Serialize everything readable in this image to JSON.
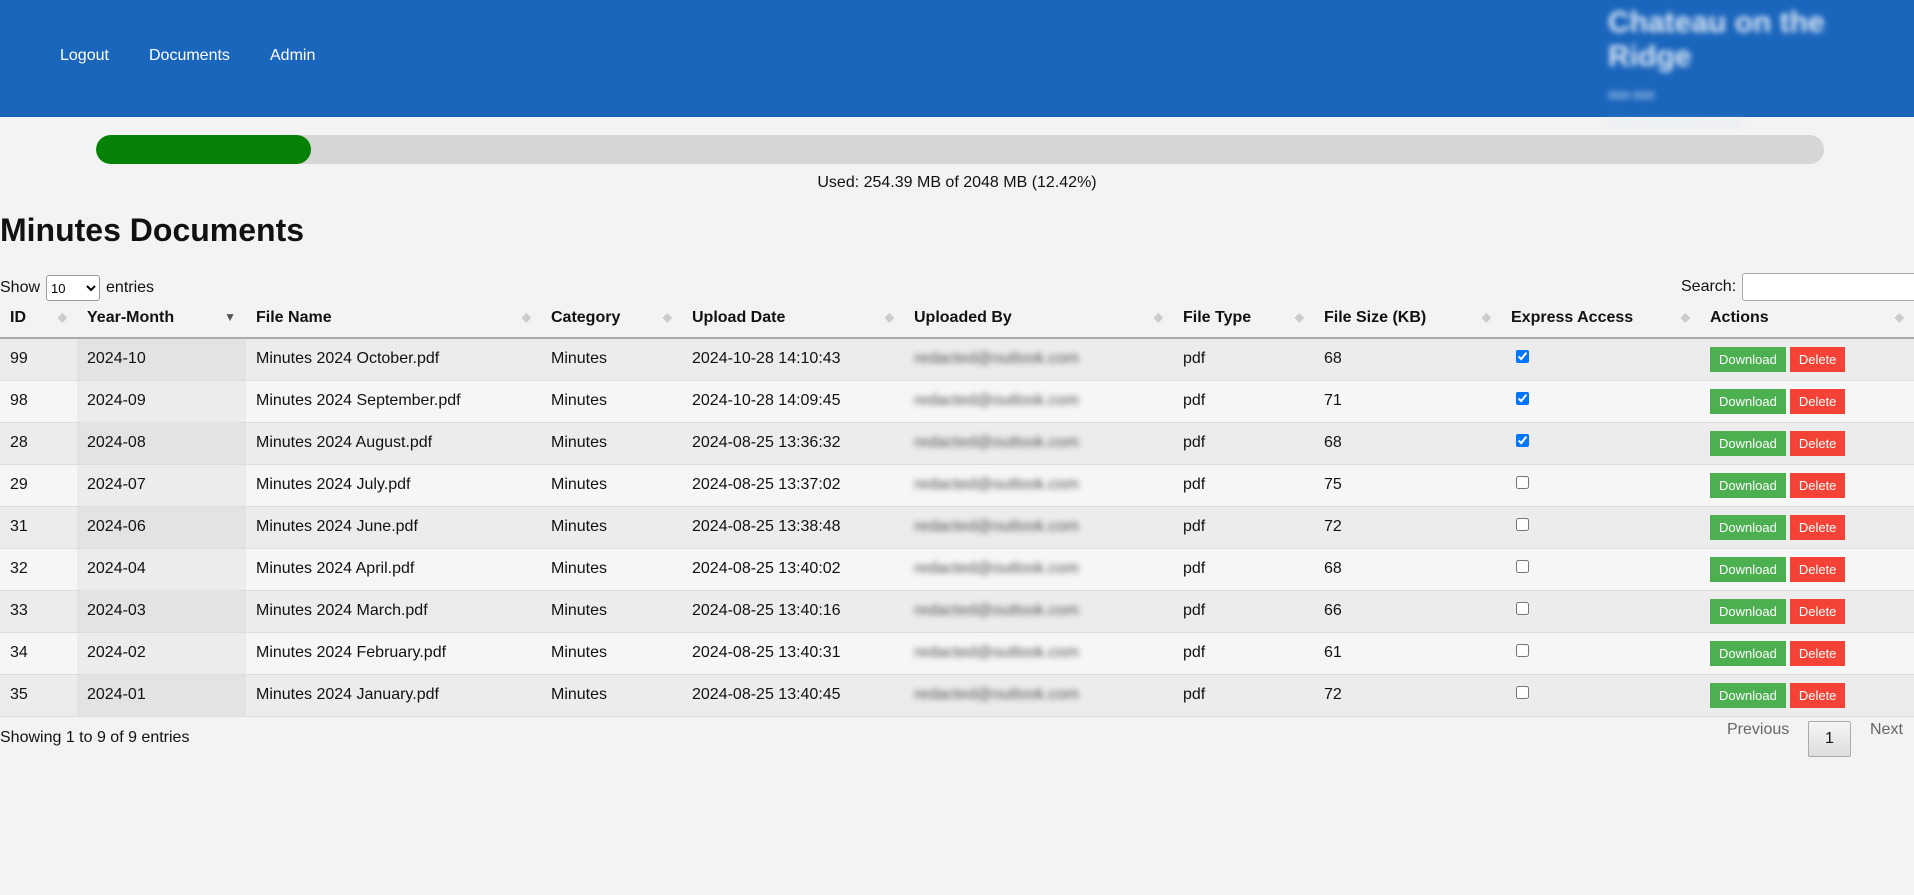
{
  "header": {
    "nav": [
      "Logout",
      "Documents",
      "Admin"
    ],
    "brand_title": "Chateau on the Ridge",
    "brand_line1": "xxx-xxx",
    "brand_line2": "xxxx xxxxxxxxxx xxxx",
    "color": "#1b66bd"
  },
  "storage": {
    "text": "Used: 254.39 MB of 2048 MB (12.42%)",
    "percent": 12.42,
    "fill_color": "#058205"
  },
  "page_title": "Minutes Documents",
  "controls": {
    "show_label": "Show",
    "entries_label": "entries",
    "page_length": "10",
    "search_label": "Search:",
    "search_value": ""
  },
  "table": {
    "columns": [
      "ID",
      "Year-Month",
      "File Name",
      "Category",
      "Upload Date",
      "Uploaded By",
      "File Type",
      "File Size (KB)",
      "Express Access",
      "Actions"
    ],
    "sorted_column": "Year-Month",
    "sort_direction": "desc",
    "download_label": "Download",
    "delete_label": "Delete",
    "rows": [
      {
        "id": "99",
        "ym": "2024-10",
        "name": "Minutes 2024 October.pdf",
        "cat": "Minutes",
        "date": "2024-10-28 14:10:43",
        "by": "redacted@outlook.com",
        "type": "pdf",
        "size": "68",
        "express": true
      },
      {
        "id": "98",
        "ym": "2024-09",
        "name": "Minutes 2024 September.pdf",
        "cat": "Minutes",
        "date": "2024-10-28 14:09:45",
        "by": "redacted@outlook.com",
        "type": "pdf",
        "size": "71",
        "express": true
      },
      {
        "id": "28",
        "ym": "2024-08",
        "name": "Minutes 2024 August.pdf",
        "cat": "Minutes",
        "date": "2024-08-25 13:36:32",
        "by": "redacted@outlook.com",
        "type": "pdf",
        "size": "68",
        "express": true
      },
      {
        "id": "29",
        "ym": "2024-07",
        "name": "Minutes 2024 July.pdf",
        "cat": "Minutes",
        "date": "2024-08-25 13:37:02",
        "by": "redacted@outlook.com",
        "type": "pdf",
        "size": "75",
        "express": false
      },
      {
        "id": "31",
        "ym": "2024-06",
        "name": "Minutes 2024 June.pdf",
        "cat": "Minutes",
        "date": "2024-08-25 13:38:48",
        "by": "redacted@outlook.com",
        "type": "pdf",
        "size": "72",
        "express": false
      },
      {
        "id": "32",
        "ym": "2024-04",
        "name": "Minutes 2024 April.pdf",
        "cat": "Minutes",
        "date": "2024-08-25 13:40:02",
        "by": "redacted@outlook.com",
        "type": "pdf",
        "size": "68",
        "express": false
      },
      {
        "id": "33",
        "ym": "2024-03",
        "name": "Minutes 2024 March.pdf",
        "cat": "Minutes",
        "date": "2024-08-25 13:40:16",
        "by": "redacted@outlook.com",
        "type": "pdf",
        "size": "66",
        "express": false
      },
      {
        "id": "34",
        "ym": "2024-02",
        "name": "Minutes 2024 February.pdf",
        "cat": "Minutes",
        "date": "2024-08-25 13:40:31",
        "by": "redacted@outlook.com",
        "type": "pdf",
        "size": "61",
        "express": false
      },
      {
        "id": "35",
        "ym": "2024-01",
        "name": "Minutes 2024 January.pdf",
        "cat": "Minutes",
        "date": "2024-08-25 13:40:45",
        "by": "redacted@outlook.com",
        "type": "pdf",
        "size": "72",
        "express": false
      }
    ]
  },
  "footer": {
    "info": "Showing 1 to 9 of 9 entries",
    "previous": "Previous",
    "page": "1",
    "next": "Next"
  }
}
